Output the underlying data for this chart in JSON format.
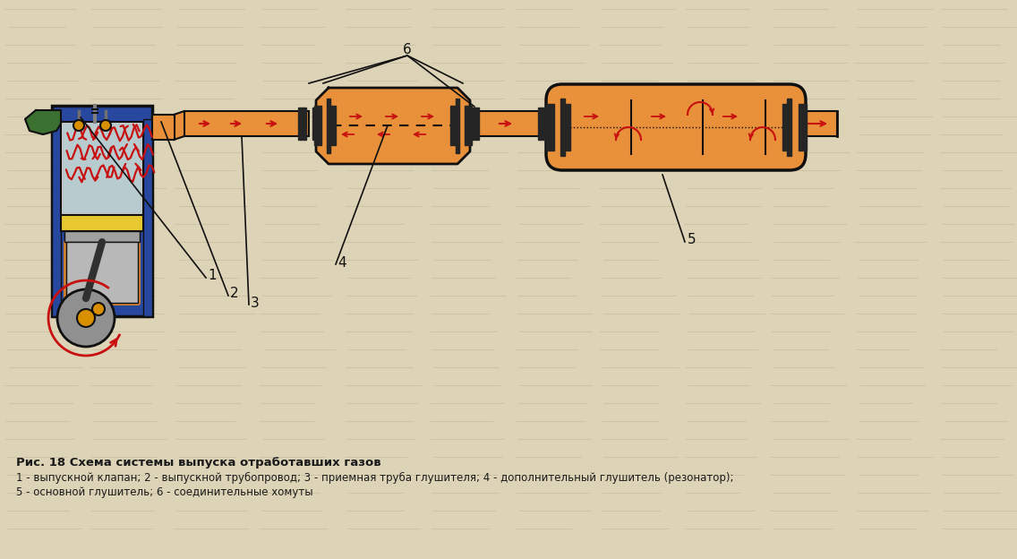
{
  "bg_color": "#ddd4b8",
  "title_bold": "Рис. 18 Схема системы выпуска отработавших газов",
  "caption_line1": "1 - выпускной клапан; 2 - выпускной трубопровод; 3 - приемная труба глушителя; 4 - дополнительный глушитель (резонатор);",
  "caption_line2": "5 - основной глушитель; 6 - соединительные хомуты",
  "orange": "#E8903A",
  "orange_dark": "#C87020",
  "blue": "#2848A0",
  "yellow": "#E8C830",
  "silver": "#C8C8C8",
  "green": "#3A7030",
  "red": "#C81010",
  "black": "#101010",
  "dark_gray": "#303030",
  "text_color": "#1a1a1a",
  "clamp_color": "#252525",
  "gold": "#D89000"
}
